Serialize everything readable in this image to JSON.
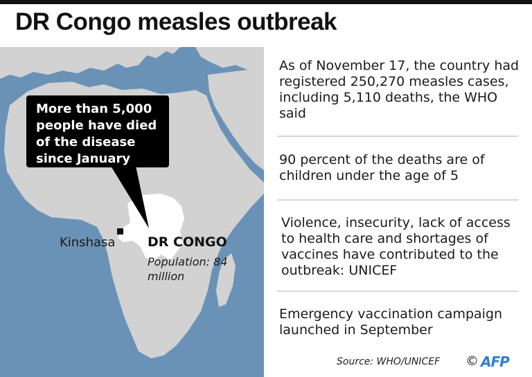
{
  "title": "DR Congo measles outbreak",
  "map": {
    "callout": "More than 5,000 people have died of the disease since January",
    "city_label": "Kinshasa",
    "country_label": "DR CONGO",
    "population_label": "Population: 84 million",
    "colors": {
      "sea": "#6a92b6",
      "land": "#d2d2d2",
      "highlight": "#ffffff",
      "callout_bg": "#000000"
    }
  },
  "facts": [
    "As of November 17, the country had registered 250,270 measles cases, including 5,110 deaths, the WHO said",
    "90 percent of the deaths are of children under the age of 5",
    "Violence, insecurity, lack of access to health care and shortages of vaccines have contributed to the outbreak: UNICEF",
    "Emergency vaccination campaign launched in September"
  ],
  "footer": {
    "source": "Source: WHO/UNICEF",
    "copyright": "©",
    "logo_text": "AFP",
    "logo_color": "#2f7fcf"
  }
}
